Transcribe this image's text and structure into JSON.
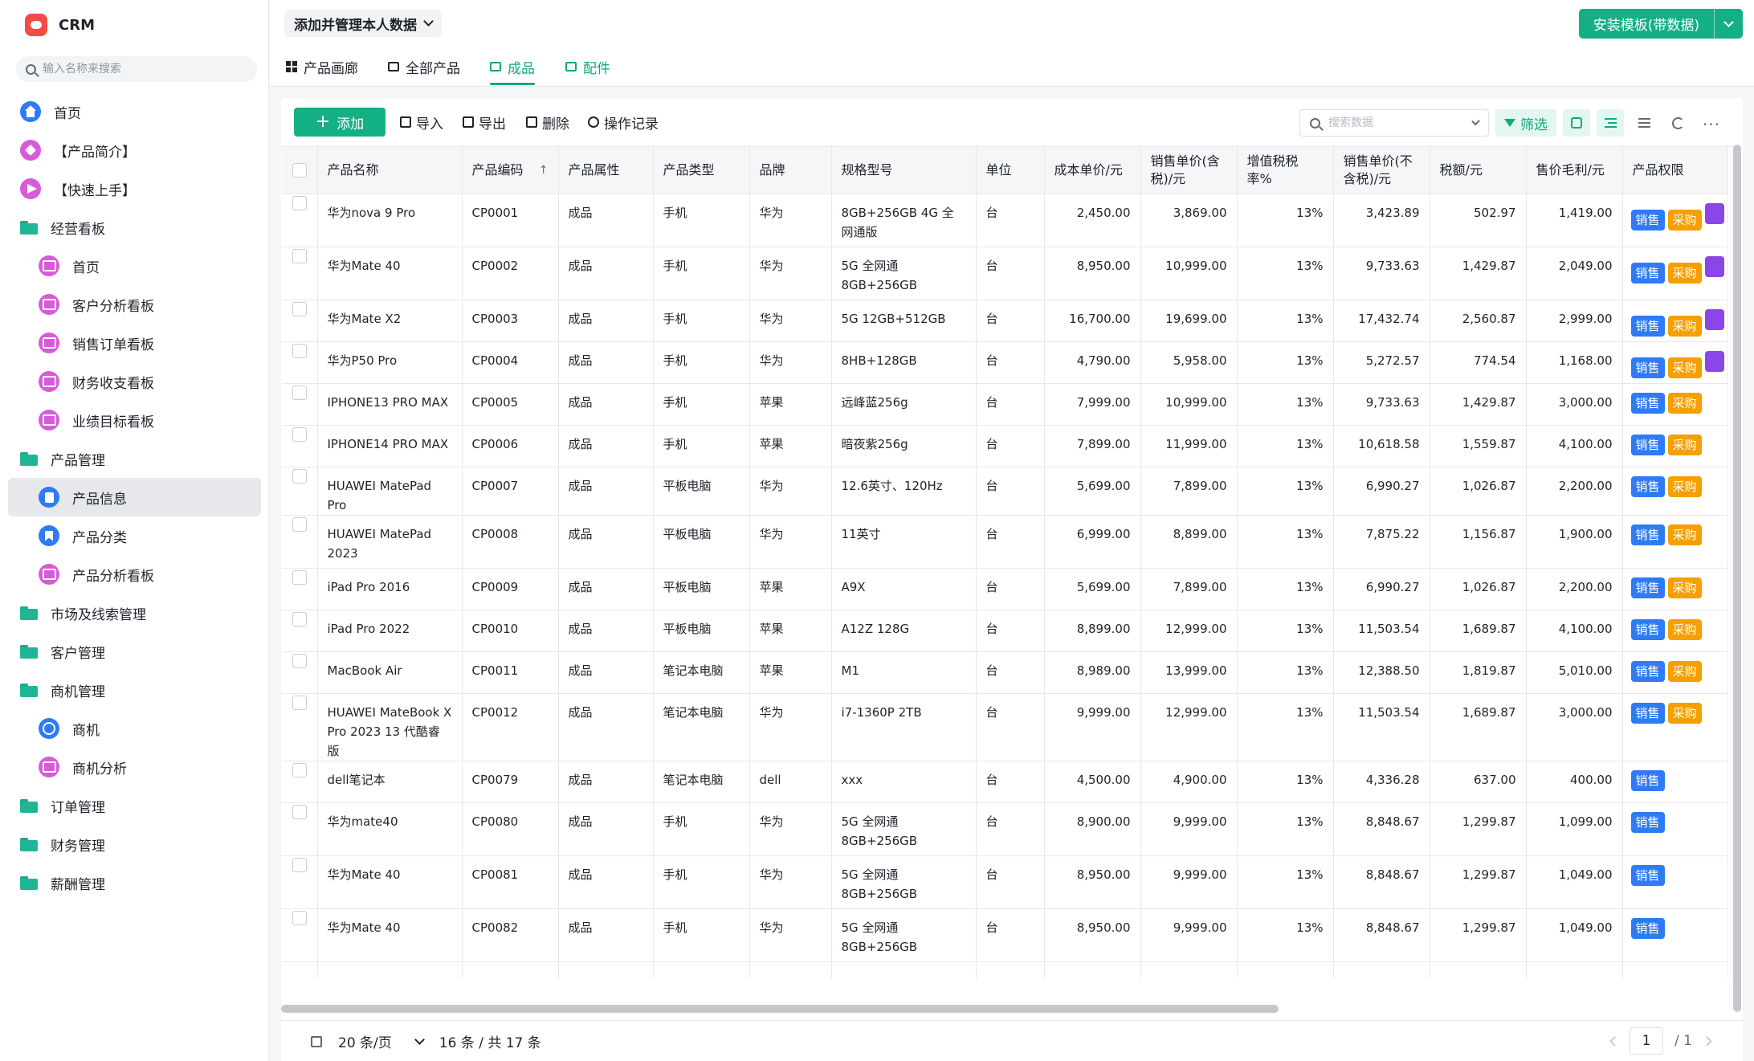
{
  "app": {
    "name": "CRM",
    "search_placeholder": "输入名称来搜索"
  },
  "sidebar": {
    "items": [
      {
        "label": "首页",
        "level": 0,
        "icon": "home-icon",
        "kind": "home"
      },
      {
        "label": "【产品简介】",
        "level": 0,
        "icon": "tag-icon",
        "kind": "tag"
      },
      {
        "label": "【快速上手】",
        "level": 0,
        "icon": "send-icon",
        "kind": "send"
      },
      {
        "label": "经营看板",
        "level": 0,
        "icon": "folder-icon",
        "kind": "folder"
      },
      {
        "label": "首页",
        "level": 1,
        "icon": "dashboard-icon",
        "kind": "dash"
      },
      {
        "label": "客户分析看板",
        "level": 1,
        "icon": "dashboard-icon",
        "kind": "dash"
      },
      {
        "label": "销售订单看板",
        "level": 1,
        "icon": "dashboard-icon",
        "kind": "dash"
      },
      {
        "label": "财务收支看板",
        "level": 1,
        "icon": "dashboard-icon",
        "kind": "dash"
      },
      {
        "label": "业绩目标看板",
        "level": 1,
        "icon": "dashboard-icon",
        "kind": "dash"
      },
      {
        "label": "产品管理",
        "level": 0,
        "icon": "folder-icon",
        "kind": "folder"
      },
      {
        "label": "产品信息",
        "level": 1,
        "icon": "document-icon",
        "kind": "doc",
        "active": true
      },
      {
        "label": "产品分类",
        "level": 1,
        "icon": "bookmark-icon",
        "kind": "bookmark"
      },
      {
        "label": "产品分析看板",
        "level": 1,
        "icon": "dashboard-icon",
        "kind": "dash"
      },
      {
        "label": "市场及线索管理",
        "level": 0,
        "icon": "folder-icon",
        "kind": "folder"
      },
      {
        "label": "客户管理",
        "level": 0,
        "icon": "folder-icon",
        "kind": "folder"
      },
      {
        "label": "商机管理",
        "level": 0,
        "icon": "folder-icon",
        "kind": "folder"
      },
      {
        "label": "商机",
        "level": 1,
        "icon": "plus-circle-icon",
        "kind": "plus"
      },
      {
        "label": "商机分析",
        "level": 1,
        "icon": "dashboard-icon",
        "kind": "dash"
      },
      {
        "label": "订单管理",
        "level": 0,
        "icon": "folder-icon",
        "kind": "folder"
      },
      {
        "label": "财务管理",
        "level": 0,
        "icon": "folder-icon",
        "kind": "folder"
      },
      {
        "label": "薪酬管理",
        "level": 0,
        "icon": "folder-icon",
        "kind": "folder"
      }
    ]
  },
  "header": {
    "title": "添加并管理本人数据",
    "install_label": "安装模板(带数据)"
  },
  "tabs": [
    {
      "label": "产品画廊",
      "active": false
    },
    {
      "label": "全部产品",
      "active": false
    },
    {
      "label": "成品",
      "active": true
    },
    {
      "label": "配件",
      "active": false
    }
  ],
  "toolbar": {
    "add_label": "添加",
    "import_label": "导入",
    "export_label": "导出",
    "delete_label": "删除",
    "history_label": "操作记录",
    "search_placeholder": "搜索数据",
    "filter_label": "筛选"
  },
  "table": {
    "columns": [
      "产品名称",
      "产品编码",
      "产品属性",
      "产品类型",
      "品牌",
      "规格型号",
      "单位",
      "成本单价/元",
      "销售单价(含税)/元",
      "增值税税率%",
      "销售单价(不含税)/元",
      "税额/元",
      "售价毛利/元",
      "产品权限"
    ],
    "perm_labels": {
      "sale": "销售",
      "buy": "采购"
    },
    "rows": [
      {
        "name": "华为nova 9 Pro",
        "code": "CP0001",
        "attr": "成品",
        "type": "手机",
        "brand": "华为",
        "spec": "8GB+256GB 4G 全网通版",
        "unit": "台",
        "cost": "2,450.00",
        "price_tax": "3,869.00",
        "rate": "13%",
        "price_notax": "3,423.89",
        "tax": "502.97",
        "margin": "1,419.00",
        "perms": [
          "sale",
          "buy",
          "other"
        ]
      },
      {
        "name": "华为Mate 40",
        "code": "CP0002",
        "attr": "成品",
        "type": "手机",
        "brand": "华为",
        "spec": "5G 全网通 8GB+256GB",
        "unit": "台",
        "cost": "8,950.00",
        "price_tax": "10,999.00",
        "rate": "13%",
        "price_notax": "9,733.63",
        "tax": "1,429.87",
        "margin": "2,049.00",
        "perms": [
          "sale",
          "buy",
          "other"
        ]
      },
      {
        "name": "华为Mate X2",
        "code": "CP0003",
        "attr": "成品",
        "type": "手机",
        "brand": "华为",
        "spec": "5G 12GB+512GB",
        "unit": "台",
        "cost": "16,700.00",
        "price_tax": "19,699.00",
        "rate": "13%",
        "price_notax": "17,432.74",
        "tax": "2,560.87",
        "margin": "2,999.00",
        "perms": [
          "sale",
          "buy",
          "other"
        ]
      },
      {
        "name": "华为P50 Pro",
        "code": "CP0004",
        "attr": "成品",
        "type": "手机",
        "brand": "华为",
        "spec": "8HB+128GB",
        "unit": "台",
        "cost": "4,790.00",
        "price_tax": "5,958.00",
        "rate": "13%",
        "price_notax": "5,272.57",
        "tax": "774.54",
        "margin": "1,168.00",
        "perms": [
          "sale",
          "buy",
          "other"
        ]
      },
      {
        "name": "IPHONE13 PRO MAX",
        "code": "CP0005",
        "attr": "成品",
        "type": "手机",
        "brand": "苹果",
        "spec": "远峰蓝256g",
        "unit": "台",
        "cost": "7,999.00",
        "price_tax": "10,999.00",
        "rate": "13%",
        "price_notax": "9,733.63",
        "tax": "1,429.87",
        "margin": "3,000.00",
        "perms": [
          "sale",
          "buy"
        ]
      },
      {
        "name": "IPHONE14 PRO MAX",
        "code": "CP0006",
        "attr": "成品",
        "type": "手机",
        "brand": "苹果",
        "spec": "暗夜紫256g",
        "unit": "台",
        "cost": "7,899.00",
        "price_tax": "11,999.00",
        "rate": "13%",
        "price_notax": "10,618.58",
        "tax": "1,559.87",
        "margin": "4,100.00",
        "perms": [
          "sale",
          "buy"
        ]
      },
      {
        "name": "HUAWEI MatePad Pro",
        "code": "CP0007",
        "attr": "成品",
        "type": "平板电脑",
        "brand": "华为",
        "spec": "12.6英寸、120Hz",
        "unit": "台",
        "cost": "5,699.00",
        "price_tax": "7,899.00",
        "rate": "13%",
        "price_notax": "6,990.27",
        "tax": "1,026.87",
        "margin": "2,200.00",
        "perms": [
          "sale",
          "buy"
        ]
      },
      {
        "name": "HUAWEI MatePad 2023",
        "code": "CP0008",
        "attr": "成品",
        "type": "平板电脑",
        "brand": "华为",
        "spec": "11英寸",
        "unit": "台",
        "cost": "6,999.00",
        "price_tax": "8,899.00",
        "rate": "13%",
        "price_notax": "7,875.22",
        "tax": "1,156.87",
        "margin": "1,900.00",
        "perms": [
          "sale",
          "buy"
        ]
      },
      {
        "name": "iPad Pro 2016",
        "code": "CP0009",
        "attr": "成品",
        "type": "平板电脑",
        "brand": "苹果",
        "spec": "A9X",
        "unit": "台",
        "cost": "5,699.00",
        "price_tax": "7,899.00",
        "rate": "13%",
        "price_notax": "6,990.27",
        "tax": "1,026.87",
        "margin": "2,200.00",
        "perms": [
          "sale",
          "buy"
        ]
      },
      {
        "name": "iPad Pro 2022",
        "code": "CP0010",
        "attr": "成品",
        "type": "平板电脑",
        "brand": "苹果",
        "spec": "A12Z 128G",
        "unit": "台",
        "cost": "8,899.00",
        "price_tax": "12,999.00",
        "rate": "13%",
        "price_notax": "11,503.54",
        "tax": "1,689.87",
        "margin": "4,100.00",
        "perms": [
          "sale",
          "buy"
        ]
      },
      {
        "name": "MacBook Air",
        "code": "CP0011",
        "attr": "成品",
        "type": "笔记本电脑",
        "brand": "苹果",
        "spec": "M1",
        "unit": "台",
        "cost": "8,989.00",
        "price_tax": "13,999.00",
        "rate": "13%",
        "price_notax": "12,388.50",
        "tax": "1,819.87",
        "margin": "5,010.00",
        "perms": [
          "sale",
          "buy"
        ]
      },
      {
        "name": "HUAWEI MateBook X Pro 2023 13 代酷睿版",
        "code": "CP0012",
        "attr": "成品",
        "type": "笔记本电脑",
        "brand": "华为",
        "spec": "i7-1360P 2TB",
        "unit": "台",
        "cost": "9,999.00",
        "price_tax": "12,999.00",
        "rate": "13%",
        "price_notax": "11,503.54",
        "tax": "1,689.87",
        "margin": "3,000.00",
        "perms": [
          "sale",
          "buy"
        ]
      },
      {
        "name": "dell笔记本",
        "code": "CP0079",
        "attr": "成品",
        "type": "笔记本电脑",
        "brand": "dell",
        "spec": "xxx",
        "unit": "台",
        "cost": "4,500.00",
        "price_tax": "4,900.00",
        "rate": "13%",
        "price_notax": "4,336.28",
        "tax": "637.00",
        "margin": "400.00",
        "perms": [
          "sale"
        ]
      },
      {
        "name": "华为mate40",
        "code": "CP0080",
        "attr": "成品",
        "type": "手机",
        "brand": "华为",
        "spec": "5G 全网通 8GB+256GB",
        "unit": "台",
        "cost": "8,900.00",
        "price_tax": "9,999.00",
        "rate": "13%",
        "price_notax": "8,848.67",
        "tax": "1,299.87",
        "margin": "1,099.00",
        "perms": [
          "sale"
        ]
      },
      {
        "name": "华为Mate 40",
        "code": "CP0081",
        "attr": "成品",
        "type": "手机",
        "brand": "华为",
        "spec": "5G 全网通 8GB+256GB",
        "unit": "台",
        "cost": "8,950.00",
        "price_tax": "9,999.00",
        "rate": "13%",
        "price_notax": "8,848.67",
        "tax": "1,299.87",
        "margin": "1,049.00",
        "perms": [
          "sale"
        ]
      },
      {
        "name": "华为Mate 40",
        "code": "CP0082",
        "attr": "成品",
        "type": "手机",
        "brand": "华为",
        "spec": "5G 全网通 8GB+256GB",
        "unit": "台",
        "cost": "8,950.00",
        "price_tax": "9,999.00",
        "rate": "13%",
        "price_notax": "8,848.67",
        "tax": "1,299.87",
        "margin": "1,049.00",
        "perms": [
          "sale"
        ]
      }
    ]
  },
  "pagination": {
    "page_size": "20 条/页",
    "summary": "16 条 / 共 17 条",
    "current": "1",
    "total": "/ 1"
  }
}
